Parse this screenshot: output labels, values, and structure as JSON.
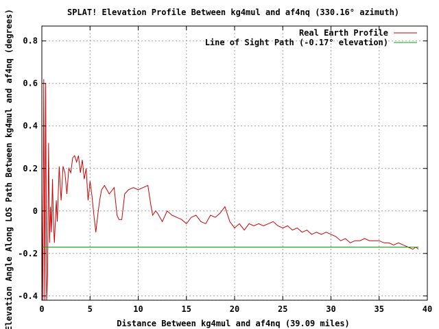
{
  "chart_data": {
    "type": "line",
    "title": "SPLAT! Elevation Profile Between kg4mul and af4nq (330.16° azimuth)",
    "xlabel": "Distance Between kg4mul and af4nq (39.09 miles)",
    "ylabel": "Elevation Angle Along LOS Path Between kg4mul and af4nq (degrees)",
    "xlim": [
      0,
      40
    ],
    "ylim": [
      -0.42,
      0.87
    ],
    "x_ticks": [
      0,
      5,
      10,
      15,
      20,
      25,
      30,
      35,
      40
    ],
    "y_ticks": [
      -0.4,
      -0.2,
      0,
      0.2,
      0.4,
      0.6,
      0.8
    ],
    "grid": true,
    "legend_position": "top-right",
    "series": [
      {
        "name": "Real Earth Profile",
        "color": "#cc0000",
        "points": [
          [
            0,
            0.1
          ],
          [
            0.1,
            -0.42
          ],
          [
            0.2,
            0.62
          ],
          [
            0.3,
            -0.42
          ],
          [
            0.4,
            0.6
          ],
          [
            0.5,
            -0.42
          ],
          [
            0.6,
            -0.3
          ],
          [
            0.7,
            0.32
          ],
          [
            0.8,
            -0.15
          ],
          [
            0.9,
            0.02
          ],
          [
            1.0,
            -0.1
          ],
          [
            1.1,
            0.15
          ],
          [
            1.2,
            -0.05
          ],
          [
            1.3,
            -0.15
          ],
          [
            1.5,
            0.05
          ],
          [
            1.6,
            -0.05
          ],
          [
            1.8,
            0.21
          ],
          [
            2.0,
            0.05
          ],
          [
            2.2,
            0.21
          ],
          [
            2.4,
            0.18
          ],
          [
            2.6,
            0.08
          ],
          [
            2.8,
            0.2
          ],
          [
            3.0,
            0.18
          ],
          [
            3.2,
            0.25
          ],
          [
            3.4,
            0.26
          ],
          [
            3.6,
            0.23
          ],
          [
            3.8,
            0.26
          ],
          [
            4.0,
            0.18
          ],
          [
            4.2,
            0.24
          ],
          [
            4.4,
            0.15
          ],
          [
            4.6,
            0.2
          ],
          [
            4.8,
            0.05
          ],
          [
            5.0,
            0.14
          ],
          [
            5.2,
            0.07
          ],
          [
            5.4,
            -0.02
          ],
          [
            5.6,
            -0.1
          ],
          [
            5.8,
            -0.02
          ],
          [
            6.0,
            0.05
          ],
          [
            6.2,
            0.1
          ],
          [
            6.5,
            0.12
          ],
          [
            7.0,
            0.08
          ],
          [
            7.5,
            0.11
          ],
          [
            7.8,
            -0.02
          ],
          [
            8.0,
            -0.04
          ],
          [
            8.3,
            -0.04
          ],
          [
            8.6,
            0.08
          ],
          [
            9.0,
            0.1
          ],
          [
            9.5,
            0.11
          ],
          [
            10.0,
            0.1
          ],
          [
            10.5,
            0.11
          ],
          [
            11.0,
            0.12
          ],
          [
            11.3,
            0.03
          ],
          [
            11.5,
            -0.02
          ],
          [
            11.8,
            0.0
          ],
          [
            12.0,
            -0.01
          ],
          [
            12.5,
            -0.05
          ],
          [
            13.0,
            0.0
          ],
          [
            13.5,
            -0.02
          ],
          [
            14.0,
            -0.03
          ],
          [
            14.5,
            -0.04
          ],
          [
            15.0,
            -0.06
          ],
          [
            15.5,
            -0.03
          ],
          [
            16.0,
            -0.02
          ],
          [
            16.5,
            -0.05
          ],
          [
            17.0,
            -0.06
          ],
          [
            17.5,
            -0.02
          ],
          [
            18.0,
            -0.03
          ],
          [
            18.5,
            -0.01
          ],
          [
            19.0,
            0.02
          ],
          [
            19.5,
            -0.05
          ],
          [
            20.0,
            -0.08
          ],
          [
            20.5,
            -0.06
          ],
          [
            21.0,
            -0.09
          ],
          [
            21.5,
            -0.06
          ],
          [
            22.0,
            -0.07
          ],
          [
            22.5,
            -0.06
          ],
          [
            23.0,
            -0.07
          ],
          [
            23.5,
            -0.06
          ],
          [
            24.0,
            -0.05
          ],
          [
            24.5,
            -0.07
          ],
          [
            25.0,
            -0.08
          ],
          [
            25.5,
            -0.07
          ],
          [
            26.0,
            -0.09
          ],
          [
            26.5,
            -0.08
          ],
          [
            27.0,
            -0.1
          ],
          [
            27.5,
            -0.09
          ],
          [
            28.0,
            -0.11
          ],
          [
            28.5,
            -0.1
          ],
          [
            29.0,
            -0.11
          ],
          [
            29.5,
            -0.1
          ],
          [
            30.0,
            -0.11
          ],
          [
            30.5,
            -0.12
          ],
          [
            31.0,
            -0.14
          ],
          [
            31.5,
            -0.13
          ],
          [
            32.0,
            -0.15
          ],
          [
            32.5,
            -0.14
          ],
          [
            33.0,
            -0.14
          ],
          [
            33.5,
            -0.13
          ],
          [
            34.0,
            -0.14
          ],
          [
            34.5,
            -0.14
          ],
          [
            35.0,
            -0.14
          ],
          [
            35.5,
            -0.15
          ],
          [
            36.0,
            -0.15
          ],
          [
            36.5,
            -0.16
          ],
          [
            37.0,
            -0.15
          ],
          [
            37.5,
            -0.16
          ],
          [
            38.0,
            -0.17
          ],
          [
            38.5,
            -0.18
          ],
          [
            38.8,
            -0.17
          ],
          [
            39.09,
            -0.18
          ]
        ]
      },
      {
        "name": "Line of Sight Path (-0.17° elevation)",
        "color": "#00aa00",
        "points": [
          [
            0,
            -0.17
          ],
          [
            39.09,
            -0.17
          ]
        ]
      }
    ]
  }
}
